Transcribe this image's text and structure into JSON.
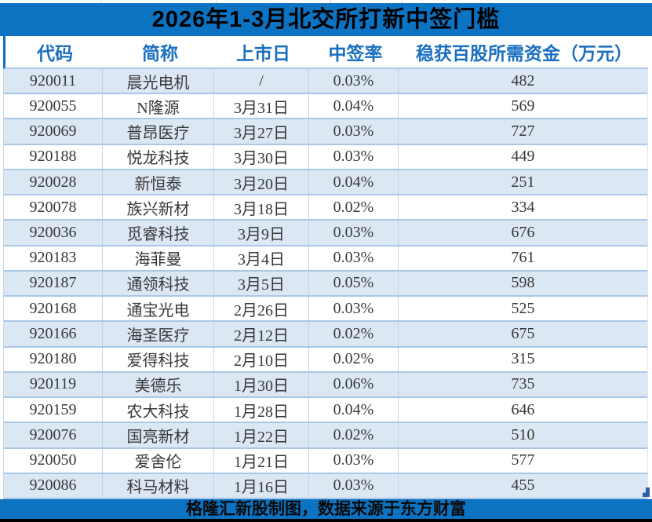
{
  "chart_data": {
    "type": "table",
    "title": "2026年1-3月北交所打新中签门槛",
    "columns": [
      "代码",
      "简称",
      "上市日",
      "中签率",
      "稳获百股所需资金（万元）"
    ],
    "rows": [
      [
        "920011",
        "晨光电机",
        "/",
        "0.03%",
        "482"
      ],
      [
        "920055",
        "N隆源",
        "3月31日",
        "0.04%",
        "569"
      ],
      [
        "920069",
        "普昂医疗",
        "3月27日",
        "0.03%",
        "727"
      ],
      [
        "920188",
        "悦龙科技",
        "3月30日",
        "0.03%",
        "449"
      ],
      [
        "920028",
        "新恒泰",
        "3月20日",
        "0.04%",
        "251"
      ],
      [
        "920078",
        "族兴新材",
        "3月18日",
        "0.02%",
        "334"
      ],
      [
        "920036",
        "觅睿科技",
        "3月9日",
        "0.03%",
        "676"
      ],
      [
        "920183",
        "海菲曼",
        "3月4日",
        "0.03%",
        "761"
      ],
      [
        "920187",
        "通领科技",
        "3月5日",
        "0.05%",
        "598"
      ],
      [
        "920168",
        "通宝光电",
        "2月26日",
        "0.03%",
        "525"
      ],
      [
        "920166",
        "海圣医疗",
        "2月12日",
        "0.02%",
        "675"
      ],
      [
        "920180",
        "爱得科技",
        "2月10日",
        "0.02%",
        "315"
      ],
      [
        "920119",
        "美德乐",
        "1月30日",
        "0.06%",
        "735"
      ],
      [
        "920159",
        "农大科技",
        "1月28日",
        "0.04%",
        "646"
      ],
      [
        "920076",
        "国亮新材",
        "1月22日",
        "0.02%",
        "510"
      ],
      [
        "920050",
        "爱舍伦",
        "1月21日",
        "0.03%",
        "577"
      ],
      [
        "920086",
        "科马材料",
        "1月16日",
        "0.03%",
        "455"
      ]
    ],
    "footer_note": "格隆汇新股制图，数据来源于东方财富",
    "legend_position": "none",
    "grid": "on"
  },
  "colors": {
    "title_bar": "#0C72C2",
    "title_text": "#000000",
    "header_text": "#1A6FC0",
    "row_alt": "#DCE7F4",
    "row_white": "#FFFFFF",
    "row_separator": "#A9C7E7",
    "cell_separator": "#BDD3EC",
    "data_text": "#383838",
    "footer_bar": "#0C72C2",
    "footer_text": "#0A0A0A",
    "bottom_strip": "#000000",
    "corner_mark": "#2A5DA8"
  }
}
